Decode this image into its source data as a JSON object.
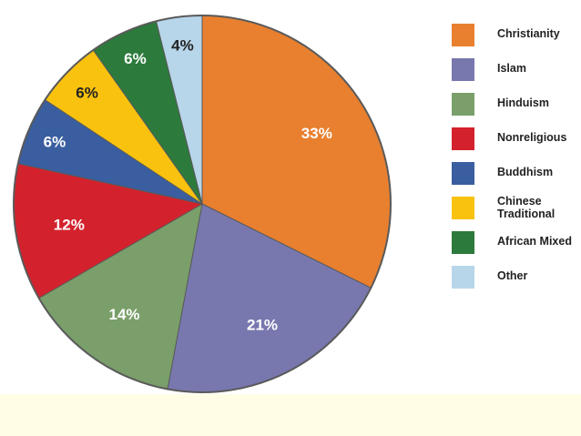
{
  "chart_data": {
    "type": "pie",
    "title": "",
    "unit": "%",
    "start_angle_deg": 0,
    "direction": "clockwise",
    "legend_position": "right",
    "slices": [
      {
        "label": "Christianity",
        "value": 33,
        "color": "#E8802F",
        "label_color": "#ffffff"
      },
      {
        "label": "Islam",
        "value": 21,
        "color": "#7878AF",
        "label_color": "#ffffff"
      },
      {
        "label": "Hinduism",
        "value": 14,
        "color": "#7A9F6A",
        "label_color": "#ffffff"
      },
      {
        "label": "Nonreligious",
        "value": 12,
        "color": "#D3222D",
        "label_color": "#ffffff"
      },
      {
        "label": "Buddhism",
        "value": 6,
        "color": "#3A5E9F",
        "label_color": "#ffffff"
      },
      {
        "label": "Chinese Traditional",
        "value": 6,
        "color": "#F9C20E",
        "label_color": "#222222"
      },
      {
        "label": "African Mixed",
        "value": 6,
        "color": "#2C7A3C",
        "label_color": "#ffffff"
      },
      {
        "label": "Other",
        "value": 4,
        "color": "#B8D6EA",
        "label_color": "#222222"
      }
    ],
    "data_labels": [
      "33%",
      "21%",
      "14%",
      "12%",
      "6%",
      "6%",
      "6%",
      "4%"
    ]
  },
  "legend": {
    "items": [
      {
        "label": "Christianity",
        "color": "#E8802F"
      },
      {
        "label": "Islam",
        "color": "#7878AF"
      },
      {
        "label": "Hinduism",
        "color": "#7A9F6A"
      },
      {
        "label": "Nonreligious",
        "color": "#D3222D"
      },
      {
        "label": "Buddhism",
        "color": "#3A5E9F"
      },
      {
        "label": "Chinese Traditional",
        "color": "#F9C20E"
      },
      {
        "label": "African Mixed",
        "color": "#2C7A3C"
      },
      {
        "label": "Other",
        "color": "#B8D6EA"
      }
    ]
  },
  "colors": {
    "footer_band": "#fffde6",
    "outline": "#5a5a5a"
  }
}
